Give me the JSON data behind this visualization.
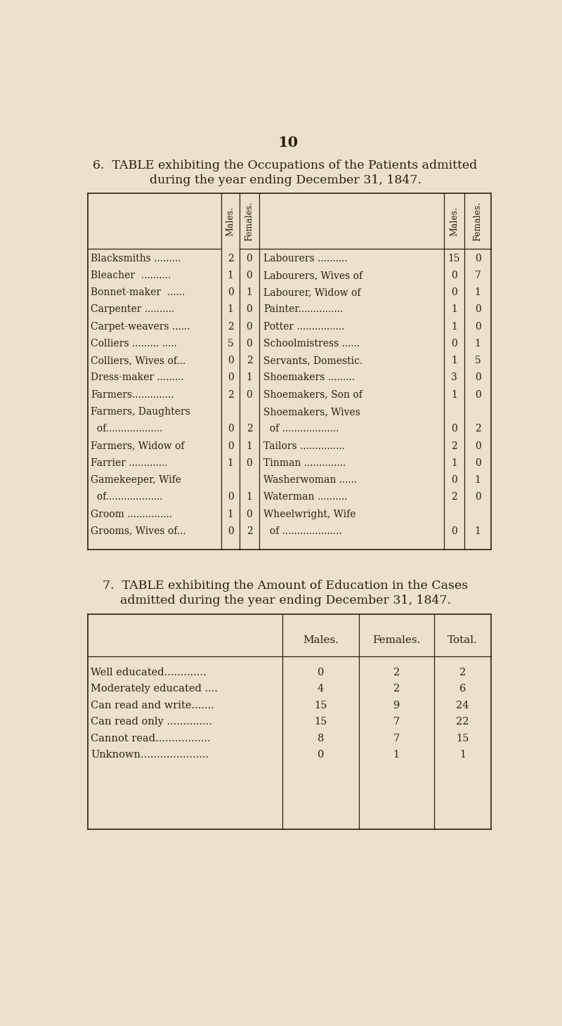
{
  "bg_color": "#ede0cc",
  "page_number": "10",
  "table6_title_line1": "6.  TABLE exhibiting the Occupations of the Patients admitted",
  "table6_title_line2": "during the year ending December 31, 1847.",
  "table6_left": [
    [
      "Blacksmiths .........",
      "2",
      "0"
    ],
    [
      "Bleacher  ..........",
      "1",
      "0"
    ],
    [
      "Bonnet-maker  ......",
      "0",
      "1"
    ],
    [
      "Carpenter ..........",
      "1",
      "0"
    ],
    [
      "Carpet-weavers ......",
      "2",
      "0"
    ],
    [
      "Colliers ......... .....",
      "5",
      "0"
    ],
    [
      "Colliers, Wives of...",
      "0",
      "2"
    ],
    [
      "Dress-maker .........",
      "0",
      "1"
    ],
    [
      "Farmers..............",
      "2",
      "0"
    ],
    [
      "Farmers, Daughters",
      "",
      ""
    ],
    [
      "  of...................",
      "0",
      "2"
    ],
    [
      "Farmers, Widow of",
      "0",
      "1"
    ],
    [
      "Farrier .............",
      "1",
      "0"
    ],
    [
      "Gamekeeper, Wife",
      "",
      ""
    ],
    [
      "  of...................",
      "0",
      "1"
    ],
    [
      "Groom ...............",
      "1",
      "0"
    ],
    [
      "Grooms, Wives of...",
      "0",
      "2"
    ]
  ],
  "table6_right": [
    [
      "Labourers ..........",
      "15",
      "0"
    ],
    [
      "Labourers, Wives of",
      "0",
      "7"
    ],
    [
      "Labourer, Widow of",
      "0",
      "1"
    ],
    [
      "Painter...............",
      "1",
      "0"
    ],
    [
      "Potter ................",
      "1",
      "0"
    ],
    [
      "Schoolmistress ......",
      "0",
      "1"
    ],
    [
      "Servants, Domestic.",
      "1",
      "5"
    ],
    [
      "Shoemakers .........",
      "3",
      "0"
    ],
    [
      "Shoemakers, Son of",
      "1",
      "0"
    ],
    [
      "Shoemakers, Wives",
      "",
      ""
    ],
    [
      "  of ...................",
      "0",
      "2"
    ],
    [
      "Tailors ...............",
      "2",
      "0"
    ],
    [
      "Tinman ..............",
      "1",
      "0"
    ],
    [
      "Washerwoman ......",
      "0",
      "1"
    ],
    [
      "Waterman ..........",
      "2",
      "0"
    ],
    [
      "Wheelwright, Wife",
      "",
      ""
    ],
    [
      "  of ....................",
      "0",
      "1"
    ]
  ],
  "table7_title_line1": "7.  TABLE exhibiting the Amount of Education in the Cases",
  "table7_title_line2": "admitted during the year ending December 31, 1847.",
  "table7_header": [
    "Males.",
    "Females.",
    "Total."
  ],
  "table7_rows": [
    [
      "Well educated.............",
      "0",
      "2",
      "2"
    ],
    [
      "Moderately educated ....",
      "4",
      "2",
      "6"
    ],
    [
      "Can read and write.......",
      "15",
      "9",
      "24"
    ],
    [
      "Can read only ..............",
      "15",
      "7",
      "22"
    ],
    [
      "Cannot read.................",
      "8",
      "7",
      "15"
    ],
    [
      "Unknown.....................",
      "0",
      "1",
      "1"
    ]
  ]
}
